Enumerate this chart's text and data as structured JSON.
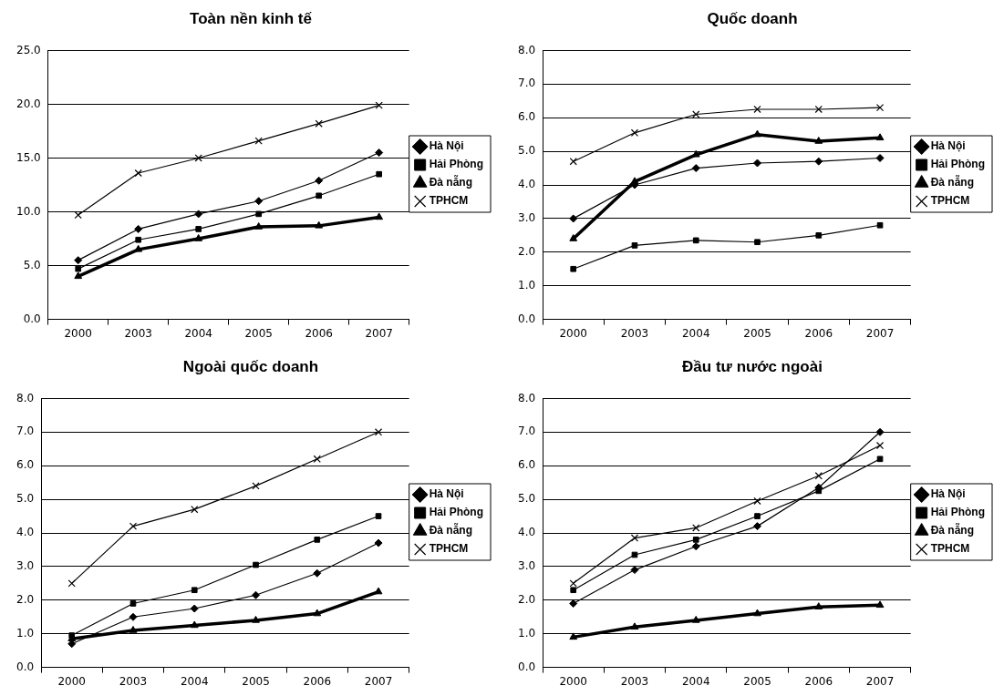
{
  "chart_data": [
    {
      "type": "line",
      "title": "Toàn nền kinh tế",
      "categories": [
        "2000",
        "2003",
        "2004",
        "2005",
        "2006",
        "2007"
      ],
      "ylim": [
        0,
        25
      ],
      "yticks": [
        {
          "value": 0,
          "label": "0.0"
        },
        {
          "value": 5,
          "label": "5.0"
        },
        {
          "value": 10,
          "label": "10.0"
        },
        {
          "value": 15,
          "label": "15.0"
        },
        {
          "value": 20,
          "label": "20.0"
        },
        {
          "value": 25,
          "label": "25.0"
        }
      ],
      "grid": "y",
      "legend": "right",
      "series": [
        {
          "name": "Hà Nội",
          "color": "#000000",
          "marker": "diamond",
          "values": [
            5.5,
            8.4,
            9.8,
            11.0,
            12.9,
            15.5
          ]
        },
        {
          "name": "Hải Phòng",
          "color": "#000000",
          "marker": "square",
          "values": [
            4.7,
            7.4,
            8.4,
            9.8,
            11.5,
            13.5
          ]
        },
        {
          "name": "Đà nẵng",
          "color": "#000000",
          "marker": "triangle",
          "values": [
            4.0,
            6.5,
            7.5,
            8.6,
            8.7,
            9.5
          ]
        },
        {
          "name": "TPHCM",
          "color": "#000000",
          "marker": "cross",
          "values": [
            9.7,
            13.6,
            15.0,
            16.6,
            18.2,
            19.9
          ]
        }
      ]
    },
    {
      "type": "line",
      "title": "Quốc doanh",
      "categories": [
        "2000",
        "2003",
        "2004",
        "2005",
        "2006",
        "2007"
      ],
      "ylim": [
        0,
        8
      ],
      "yticks": [
        {
          "value": 0,
          "label": "0.0"
        },
        {
          "value": 1,
          "label": "1.0"
        },
        {
          "value": 2,
          "label": "2.0"
        },
        {
          "value": 3,
          "label": "3.0"
        },
        {
          "value": 4,
          "label": "4.0"
        },
        {
          "value": 5,
          "label": "5.0"
        },
        {
          "value": 6,
          "label": "6.0"
        },
        {
          "value": 7,
          "label": "7.0"
        },
        {
          "value": 8,
          "label": "8.0"
        }
      ],
      "grid": "y",
      "legend": "right",
      "series": [
        {
          "name": "Hà Nội",
          "color": "#000000",
          "marker": "diamond",
          "values": [
            3.0,
            4.0,
            4.5,
            4.65,
            4.7,
            4.8
          ]
        },
        {
          "name": "Hải Phòng",
          "color": "#000000",
          "marker": "square",
          "values": [
            1.5,
            2.2,
            2.35,
            2.3,
            2.5,
            2.8
          ]
        },
        {
          "name": "Đà nẵng",
          "color": "#000000",
          "marker": "triangle",
          "values": [
            2.4,
            4.1,
            4.9,
            5.5,
            5.3,
            5.4
          ]
        },
        {
          "name": "TPHCM",
          "color": "#000000",
          "marker": "cross",
          "values": [
            4.7,
            5.55,
            6.1,
            6.25,
            6.25,
            6.3
          ]
        }
      ]
    },
    {
      "type": "line",
      "title": "Ngoài quốc doanh",
      "categories": [
        "2000",
        "2003",
        "2004",
        "2005",
        "2006",
        "2007"
      ],
      "ylim": [
        0,
        8
      ],
      "yticks": [
        {
          "value": 0,
          "label": "0.0"
        },
        {
          "value": 1,
          "label": "1.0"
        },
        {
          "value": 2,
          "label": "2.0"
        },
        {
          "value": 3,
          "label": "3.0"
        },
        {
          "value": 4,
          "label": "4.0"
        },
        {
          "value": 5,
          "label": "5.0"
        },
        {
          "value": 6,
          "label": "6.0"
        },
        {
          "value": 7,
          "label": "7.0"
        },
        {
          "value": 8,
          "label": "8.0"
        }
      ],
      "grid": "y",
      "legend": "right",
      "series": [
        {
          "name": "Hà Nội",
          "color": "#000000",
          "marker": "diamond",
          "values": [
            0.7,
            1.5,
            1.75,
            2.15,
            2.8,
            3.7
          ]
        },
        {
          "name": "Hải Phòng",
          "color": "#000000",
          "marker": "square",
          "values": [
            0.95,
            1.9,
            2.3,
            3.05,
            3.8,
            4.5
          ]
        },
        {
          "name": "Đà nẵng",
          "color": "#000000",
          "marker": "triangle",
          "values": [
            0.85,
            1.1,
            1.25,
            1.4,
            1.6,
            2.25
          ]
        },
        {
          "name": "TPHCM",
          "color": "#000000",
          "marker": "cross",
          "values": [
            2.5,
            4.2,
            4.7,
            5.4,
            6.2,
            7.0
          ]
        }
      ]
    },
    {
      "type": "line",
      "title": "Đầu tư nước ngoài",
      "categories": [
        "2000",
        "2003",
        "2004",
        "2005",
        "2006",
        "2007"
      ],
      "ylim": [
        0,
        8
      ],
      "yticks": [
        {
          "value": 0,
          "label": "0.0"
        },
        {
          "value": 1,
          "label": "1.0"
        },
        {
          "value": 2,
          "label": "2.0"
        },
        {
          "value": 3,
          "label": "3.0"
        },
        {
          "value": 4,
          "label": "4.0"
        },
        {
          "value": 5,
          "label": "5.0"
        },
        {
          "value": 6,
          "label": "6.0"
        },
        {
          "value": 7,
          "label": "7.0"
        },
        {
          "value": 8,
          "label": "8.0"
        }
      ],
      "grid": "y",
      "legend": "right",
      "series": [
        {
          "name": "Hà Nội",
          "color": "#000000",
          "marker": "diamond",
          "values": [
            1.9,
            2.9,
            3.6,
            4.2,
            5.35,
            7.0
          ]
        },
        {
          "name": "Hải Phòng",
          "color": "#000000",
          "marker": "square",
          "values": [
            2.3,
            3.35,
            3.8,
            4.5,
            5.25,
            6.2
          ]
        },
        {
          "name": "Đà nẵng",
          "color": "#000000",
          "marker": "triangle",
          "values": [
            0.9,
            1.2,
            1.4,
            1.6,
            1.8,
            1.85
          ]
        },
        {
          "name": "TPHCM",
          "color": "#000000",
          "marker": "cross",
          "values": [
            2.5,
            3.85,
            4.15,
            4.95,
            5.7,
            6.6
          ]
        }
      ]
    }
  ]
}
